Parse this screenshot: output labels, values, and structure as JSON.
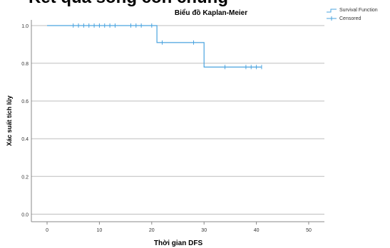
{
  "page": {
    "cropped_header_text": "Kết quả sống còn chung"
  },
  "chart_data": {
    "type": "line",
    "title": "Biểu đồ Kaplan-Meier",
    "xlabel": "Thời gian DFS",
    "ylabel": "Xác suất tích lũy",
    "xlim": [
      -3,
      53
    ],
    "ylim": [
      -0.04,
      1.03
    ],
    "xticks": [
      0,
      10,
      20,
      30,
      40,
      50
    ],
    "yticks": [
      0.0,
      0.2,
      0.4,
      0.6,
      0.8,
      1.0
    ],
    "ytick_labels": [
      "0.0",
      "0.2",
      "0.4",
      "0.6",
      "0.8",
      "1.0"
    ],
    "grid": "horizontal",
    "legend": {
      "placement": "top-right",
      "entries": [
        "Survival Function",
        "Censored"
      ]
    },
    "colors": {
      "line": "#4aa3df",
      "grid": "#bdbdbd",
      "axis": "#888888"
    },
    "series": [
      {
        "name": "Survival Function",
        "kind": "step",
        "x": [
          0,
          21,
          21,
          30,
          30,
          41
        ],
        "y": [
          1.0,
          1.0,
          0.91,
          0.91,
          0.78,
          0.78
        ]
      },
      {
        "name": "Censored",
        "kind": "censor-marks",
        "points": [
          {
            "x": 5,
            "y": 1.0
          },
          {
            "x": 6,
            "y": 1.0
          },
          {
            "x": 7,
            "y": 1.0
          },
          {
            "x": 8,
            "y": 1.0
          },
          {
            "x": 9,
            "y": 1.0
          },
          {
            "x": 10,
            "y": 1.0
          },
          {
            "x": 11,
            "y": 1.0
          },
          {
            "x": 12,
            "y": 1.0
          },
          {
            "x": 13,
            "y": 1.0
          },
          {
            "x": 16,
            "y": 1.0
          },
          {
            "x": 17,
            "y": 1.0
          },
          {
            "x": 18,
            "y": 1.0
          },
          {
            "x": 20,
            "y": 1.0
          },
          {
            "x": 22,
            "y": 0.91
          },
          {
            "x": 28,
            "y": 0.91
          },
          {
            "x": 34,
            "y": 0.78
          },
          {
            "x": 38,
            "y": 0.78
          },
          {
            "x": 39,
            "y": 0.78
          },
          {
            "x": 40,
            "y": 0.78
          },
          {
            "x": 41,
            "y": 0.78
          }
        ]
      }
    ]
  }
}
